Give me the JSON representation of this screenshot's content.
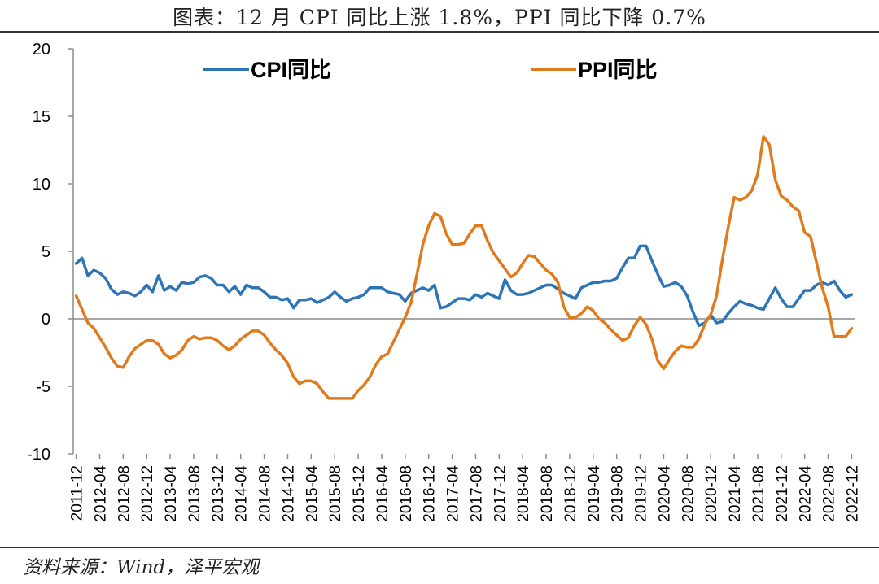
{
  "title": "图表：12 月 CPI 同比上涨 1.8%，PPI 同比下降 0.7%",
  "source": "资料来源：Wind，泽平宏观",
  "chart_data": {
    "type": "line",
    "ylim": [
      -10,
      20
    ],
    "yticks": [
      20,
      15,
      10,
      5,
      0,
      -5,
      -10
    ],
    "xtick_labels": [
      "2011-12",
      "2012-04",
      "2012-08",
      "2012-12",
      "2013-04",
      "2013-08",
      "2013-12",
      "2014-04",
      "2014-08",
      "2014-12",
      "2015-04",
      "2015-08",
      "2015-12",
      "2016-04",
      "2016-08",
      "2016-12",
      "2017-04",
      "2017-08",
      "2017-12",
      "2018-04",
      "2018-08",
      "2018-12",
      "2019-04",
      "2019-08",
      "2019-12",
      "2020-04",
      "2020-08",
      "2020-12",
      "2021-04",
      "2021-08",
      "2021-12",
      "2022-04",
      "2022-08",
      "2022-12"
    ],
    "legend_position": "top",
    "grid": false,
    "series": [
      {
        "name": "CPI同比",
        "color": "#2E75B6",
        "values": [
          4.1,
          4.5,
          3.2,
          3.6,
          3.4,
          3.0,
          2.2,
          1.8,
          2.0,
          1.9,
          1.7,
          2.0,
          2.5,
          2.0,
          3.2,
          2.1,
          2.4,
          2.1,
          2.7,
          2.6,
          2.7,
          3.1,
          3.2,
          3.0,
          2.5,
          2.5,
          2.0,
          2.4,
          1.8,
          2.5,
          2.3,
          2.3,
          2.0,
          1.6,
          1.6,
          1.4,
          1.5,
          0.8,
          1.4,
          1.4,
          1.5,
          1.2,
          1.4,
          1.6,
          2.0,
          1.6,
          1.3,
          1.5,
          1.6,
          1.8,
          2.3,
          2.3,
          2.3,
          2.0,
          1.9,
          1.8,
          1.3,
          1.9,
          2.1,
          2.3,
          2.1,
          2.5,
          0.8,
          0.9,
          1.2,
          1.5,
          1.5,
          1.4,
          1.8,
          1.6,
          1.9,
          1.7,
          1.5,
          2.9,
          2.1,
          1.8,
          1.8,
          1.9,
          2.1,
          2.3,
          2.5,
          2.5,
          2.2,
          1.9,
          1.7,
          1.5,
          2.3,
          2.5,
          2.7,
          2.7,
          2.8,
          2.8,
          3.0,
          3.8,
          4.5,
          4.5,
          5.4,
          5.4,
          4.3,
          3.3,
          2.4,
          2.5,
          2.7,
          2.4,
          1.7,
          0.5,
          -0.5,
          -0.3,
          0.3,
          -0.3,
          -0.2,
          0.4,
          0.9,
          1.3,
          1.1,
          1.0,
          0.8,
          0.7,
          1.5,
          2.3,
          1.5,
          0.9,
          0.9,
          1.5,
          2.1,
          2.1,
          2.5,
          2.7,
          2.5,
          2.8,
          2.1,
          1.6,
          1.8
        ]
      },
      {
        "name": "PPI同比",
        "color": "#E07B1D",
        "values": [
          1.7,
          0.7,
          -0.3,
          -0.7,
          -1.4,
          -2.1,
          -2.9,
          -3.5,
          -3.6,
          -2.8,
          -2.2,
          -1.9,
          -1.6,
          -1.6,
          -1.9,
          -2.6,
          -2.9,
          -2.7,
          -2.3,
          -1.6,
          -1.3,
          -1.5,
          -1.4,
          -1.4,
          -1.6,
          -2.0,
          -2.3,
          -2.0,
          -1.5,
          -1.2,
          -0.9,
          -0.9,
          -1.2,
          -1.8,
          -2.3,
          -2.7,
          -3.3,
          -4.3,
          -4.8,
          -4.6,
          -4.6,
          -4.8,
          -5.4,
          -5.9,
          -5.9,
          -5.9,
          -5.9,
          -5.9,
          -5.3,
          -4.9,
          -4.3,
          -3.4,
          -2.8,
          -2.6,
          -1.7,
          -0.8,
          0.1,
          1.2,
          3.3,
          5.5,
          6.9,
          7.8,
          7.6,
          6.3,
          5.5,
          5.5,
          5.6,
          6.3,
          6.9,
          6.9,
          5.8,
          4.9,
          4.3,
          3.7,
          3.1,
          3.4,
          4.1,
          4.7,
          4.6,
          4.1,
          3.6,
          3.3,
          2.7,
          0.9,
          0.1,
          0.1,
          0.4,
          0.9,
          0.6,
          0.0,
          -0.3,
          -0.8,
          -1.2,
          -1.6,
          -1.4,
          -0.5,
          0.1,
          -0.4,
          -1.5,
          -3.1,
          -3.7,
          -3.0,
          -2.4,
          -2.0,
          -2.1,
          -2.1,
          -1.5,
          -0.4,
          0.3,
          1.7,
          4.4,
          6.8,
          9.0,
          8.8,
          9.0,
          9.5,
          10.7,
          13.5,
          12.9,
          10.3,
          9.1,
          8.8,
          8.3,
          8.0,
          6.4,
          6.1,
          4.2,
          2.3,
          0.9,
          -1.3,
          -1.3,
          -1.3,
          -0.7
        ]
      }
    ]
  }
}
